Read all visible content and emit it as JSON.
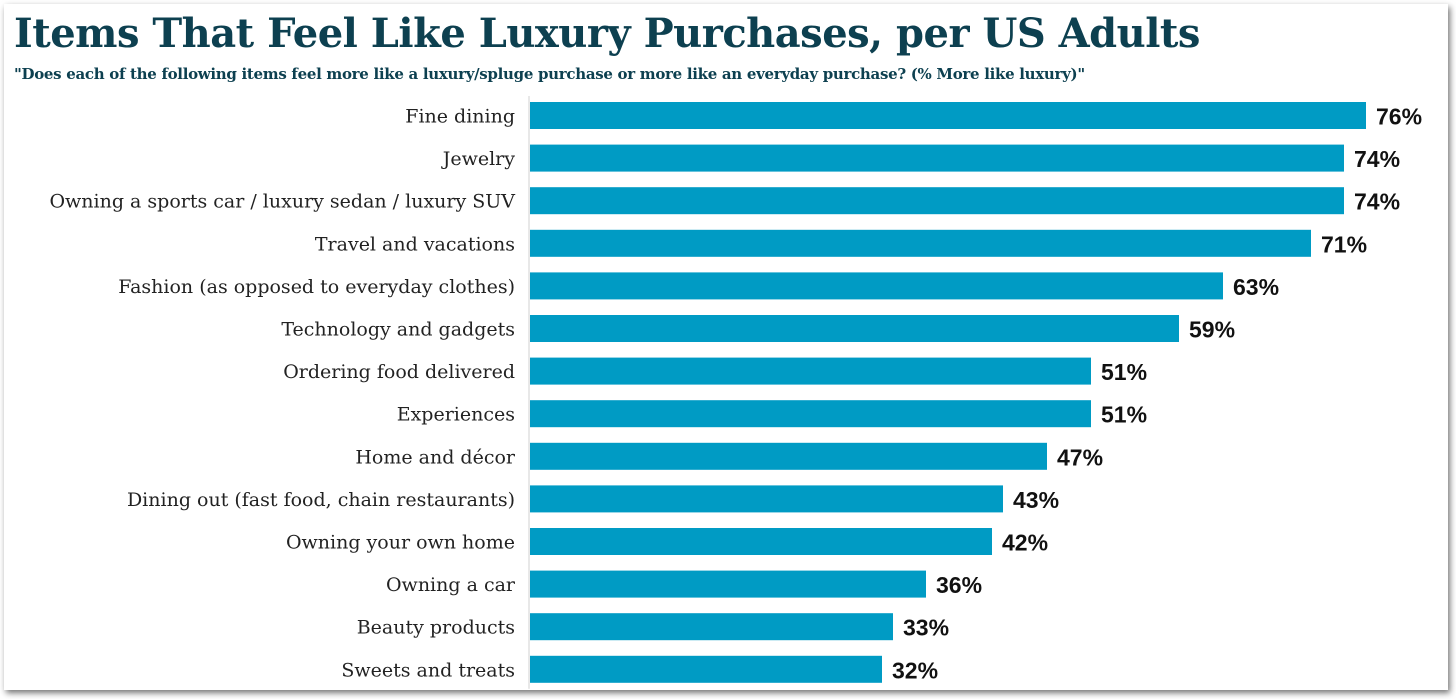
{
  "chart_data": {
    "type": "bar",
    "orientation": "horizontal",
    "title": "Items That Feel Like Luxury Purchases, per US Adults",
    "subtitle": "\"Does each of the following items feel more like a luxury/spluge purchase or more like an everyday purchase? (% More like luxury)\"",
    "categories": [
      "Fine dining",
      "Jewelry",
      "Owning a sports car / luxury sedan / luxury SUV",
      "Travel and vacations",
      "Fashion (as opposed to everyday clothes)",
      "Technology and gadgets",
      "Ordering food delivered",
      "Experiences",
      "Home and décor",
      "Dining out (fast food, chain restaurants)",
      "Owning your own home",
      "Owning a car",
      "Beauty products",
      "Sweets and treats"
    ],
    "values": [
      76,
      74,
      74,
      71,
      63,
      59,
      51,
      51,
      47,
      43,
      42,
      36,
      33,
      32
    ],
    "value_labels": [
      "76%",
      "74%",
      "74%",
      "71%",
      "63%",
      "59%",
      "51%",
      "51%",
      "47%",
      "43%",
      "42%",
      "36%",
      "33%",
      "32%"
    ],
    "unit": "%",
    "xlim": [
      0,
      76
    ],
    "grid": false,
    "legend": "none",
    "bar_color": "#009bc4",
    "title_color": "#0d4050"
  }
}
